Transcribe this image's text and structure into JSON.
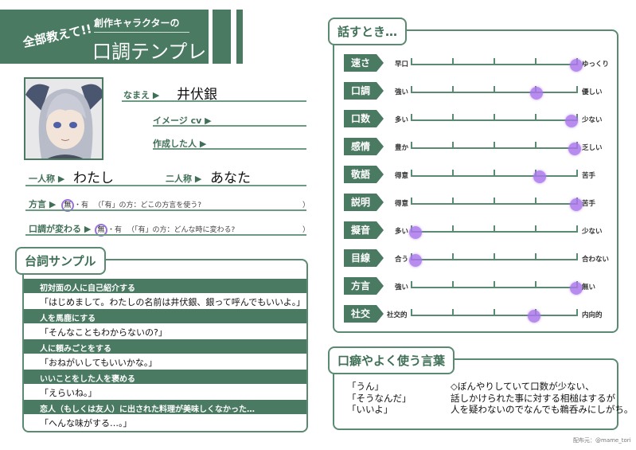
{
  "header": {
    "catch": "全部教えて!!",
    "subtitle": "創作キャラクターの",
    "title": "口調テンプレ"
  },
  "profile": {
    "name_label": "なまえ ▶",
    "name": "井伏銀",
    "cv_label": "イメージ cv ▶",
    "cv": "",
    "creator_label": "作成した人 ▶",
    "creator": "",
    "first_person_label": "一人称 ▶",
    "first_person": "わたし",
    "second_person_label": "二人称 ▶",
    "second_person": "あなた",
    "dialect_label": "方言 ▶",
    "dialect_none": "無",
    "dialect_yes": "・有",
    "dialect_note": "（「有」の方：どこの方言を使う?",
    "close": "）",
    "tone_change_label": "口調が変わる ▶",
    "tone_change_none": "無",
    "tone_change_yes": "・有",
    "tone_change_note": "（「有」の方：どんな時に変わる?",
    "selected_color": "#9b6fe0"
  },
  "samples": {
    "title": "台詞サンプル",
    "items": [
      {
        "situation": "初対面の人に自己紹介する",
        "line": "「はじめまして。わたしの名前は井伏銀、銀って呼んでもいいよ。」"
      },
      {
        "situation": "人を馬鹿にする",
        "line": "「そんなこともわからないの?」"
      },
      {
        "situation": "人に頼みごとをする",
        "line": "「おねがいしてもいいかな。」"
      },
      {
        "situation": "いいことをした人を褒める",
        "line": "「えらいね。」"
      },
      {
        "situation": "恋人（もしくは友人）に出された料理が美味しくなかった…",
        "line": "「へんな味がする…。」"
      }
    ]
  },
  "speaking": {
    "title": "話すとき…",
    "scales": [
      {
        "label": "速さ",
        "left": "早口",
        "right": "ゆっくり",
        "value": 0.99
      },
      {
        "label": "口調",
        "left": "強い",
        "right": "優しい",
        "value": 0.75
      },
      {
        "label": "口数",
        "left": "多い",
        "right": "少ない",
        "value": 0.96
      },
      {
        "label": "感情",
        "left": "豊か",
        "right": "乏しい",
        "value": 0.98
      },
      {
        "label": "敬語",
        "left": "得意",
        "right": "苦手",
        "value": 0.77
      },
      {
        "label": "説明",
        "left": "得意",
        "right": "苦手",
        "value": 0.99
      },
      {
        "label": "擬音",
        "left": "多い",
        "right": "少ない",
        "value": 0.03
      },
      {
        "label": "目線",
        "left": "合う",
        "right": "合わない",
        "value": 0.03
      },
      {
        "label": "方言",
        "left": "強い",
        "right": "無い",
        "value": 0.99
      },
      {
        "label": "社交",
        "left": "社交的",
        "right": "内向的",
        "value": 0.74
      }
    ]
  },
  "phrases": {
    "title": "口癖やよく使う言葉",
    "words": [
      "「うん」",
      "「そうなんだ」",
      "「いいよ」"
    ],
    "notes": [
      "◇ぼんやりしていて口数が少ない、",
      "話しかけられた事に対する相槌はするが",
      "人を疑わないのでなんでも鵜呑みにしがち。"
    ]
  },
  "footer": {
    "credit": "配布元：@mame_tori"
  },
  "colors": {
    "accent": "#4a7a62",
    "marker": "#aa78eb"
  }
}
